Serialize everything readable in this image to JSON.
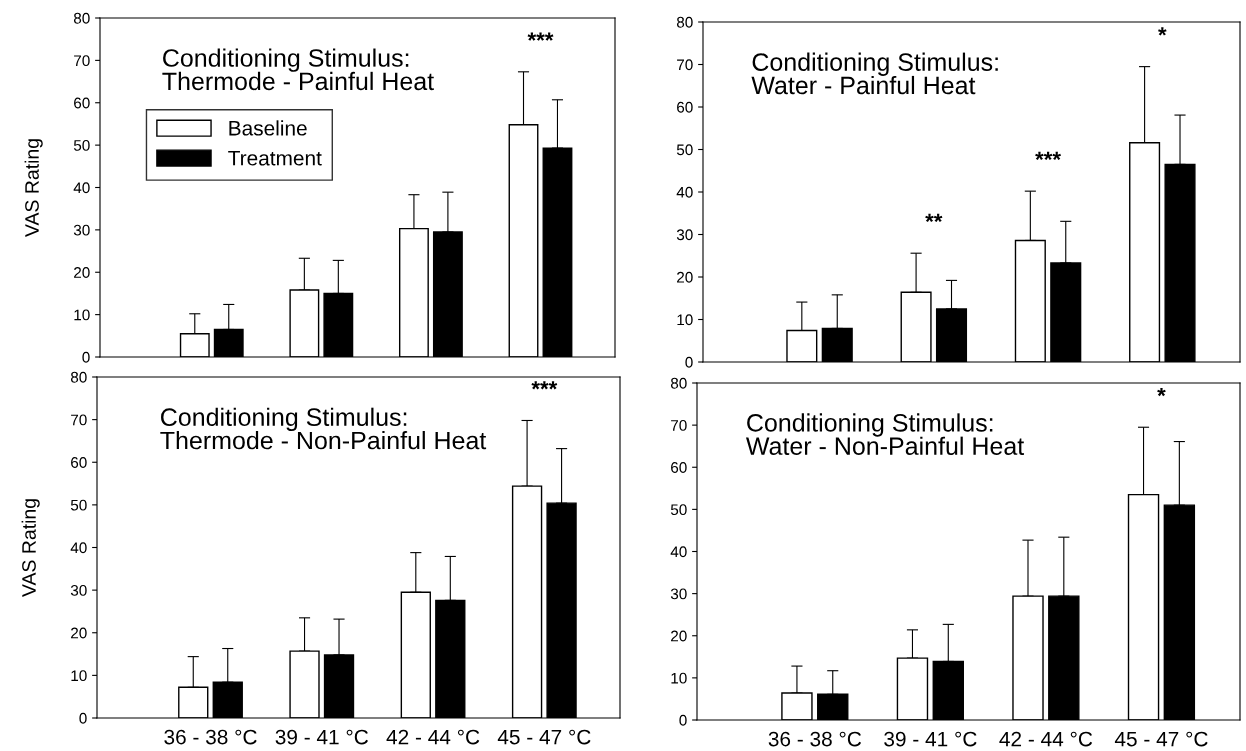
{
  "chart_data": [
    {
      "type": "bar",
      "title": "Conditioning Stimulus:\nThermode - Painful Heat",
      "ylabel": "VAS Rating",
      "categories": [
        null,
        null,
        null,
        null
      ],
      "ylim": [
        0,
        80
      ],
      "yticks": [
        0,
        10,
        20,
        30,
        40,
        50,
        60,
        70,
        80
      ],
      "tick_labels": "y",
      "legend": "top left",
      "grid": false,
      "series": [
        {
          "name": "Baseline",
          "color": "#ffffff",
          "values": [
            5.5,
            15.8,
            30.3,
            54.8
          ],
          "errors": [
            [
              5.5,
              10.2
            ],
            [
              15.8,
              23.3
            ],
            [
              30.3,
              38.3
            ],
            [
              54.8,
              67.3
            ]
          ]
        },
        {
          "name": "Treatment",
          "color": "#000000",
          "values": [
            6.5,
            15.0,
            29.5,
            49.3
          ],
          "errors": [
            [
              6.5,
              12.4
            ],
            [
              15.0,
              22.8
            ],
            [
              29.5,
              38.9
            ],
            [
              49.3,
              60.7
            ]
          ]
        }
      ],
      "annotations": [
        "***"
      ]
    },
    {
      "type": "bar",
      "title": "Conditioning Stimulus:\nWater - Painful Heat",
      "categories": [
        null,
        null,
        null,
        null
      ],
      "ylim": [
        0,
        80
      ],
      "yticks": [
        0,
        10,
        20,
        30,
        40,
        50,
        60,
        70,
        80
      ],
      "tick_labels": "y",
      "grid": false,
      "series": [
        {
          "color": "#ffffff",
          "values": [
            7.4,
            16.4,
            28.6,
            51.6
          ],
          "errors": [
            [
              7.4,
              14.1
            ],
            [
              16.4,
              25.6
            ],
            [
              28.6,
              40.2
            ],
            [
              51.6,
              69.5
            ]
          ]
        },
        {
          "color": "#000000",
          "values": [
            7.9,
            12.5,
            23.3,
            46.5
          ],
          "errors": [
            [
              7.9,
              15.8
            ],
            [
              12.5,
              19.2
            ],
            [
              23.3,
              33.1
            ],
            [
              46.5,
              58.1
            ]
          ]
        }
      ],
      "annotations": [
        "**",
        "***",
        "*"
      ]
    },
    {
      "type": "bar",
      "title": "Conditioning Stimulus:\nThermode - Non-Painful Heat",
      "ylabel": "VAS Rating",
      "categories": [
        "36 - 38 °C",
        "39 - 41 °C",
        "42 - 44 °C",
        "45 - 47 °C"
      ],
      "ylim": [
        0,
        80
      ],
      "yticks": [
        0,
        10,
        20,
        30,
        40,
        50,
        60,
        70,
        80
      ],
      "grid": false,
      "series": [
        {
          "color": "#ffffff",
          "values": [
            7.2,
            15.7,
            29.5,
            54.4
          ],
          "errors": [
            [
              7.2,
              14.4
            ],
            [
              15.7,
              23.5
            ],
            [
              29.5,
              38.8
            ],
            [
              54.4,
              69.8
            ]
          ]
        },
        {
          "color": "#000000",
          "values": [
            8.4,
            14.8,
            27.6,
            50.4
          ],
          "errors": [
            [
              8.4,
              16.3
            ],
            [
              14.8,
              23.2
            ],
            [
              27.6,
              37.9
            ],
            [
              50.4,
              63.2
            ]
          ]
        }
      ],
      "annotations": [
        "***"
      ]
    },
    {
      "type": "bar",
      "title": "Conditioning Stimulus:\nWater - Non-Painful Heat",
      "categories": [
        "36 - 38 °C",
        "39 - 41 °C",
        "42 - 44 °C",
        "45 - 47 °C"
      ],
      "ylim": [
        0,
        80
      ],
      "yticks": [
        0,
        10,
        20,
        30,
        40,
        50,
        60,
        70,
        80
      ],
      "grid": false,
      "series": [
        {
          "color": "#ffffff",
          "values": [
            6.4,
            14.7,
            29.4,
            53.5
          ],
          "errors": [
            [
              6.4,
              12.8
            ],
            [
              14.7,
              21.4
            ],
            [
              29.4,
              42.7
            ],
            [
              53.5,
              69.5
            ]
          ]
        },
        {
          "color": "#000000",
          "values": [
            6.1,
            13.9,
            29.4,
            51.0
          ],
          "errors": [
            [
              6.1,
              11.7
            ],
            [
              13.9,
              22.7
            ],
            [
              29.4,
              43.4
            ],
            [
              51.0,
              66.1
            ]
          ]
        }
      ],
      "annotations": [
        "*"
      ]
    }
  ]
}
